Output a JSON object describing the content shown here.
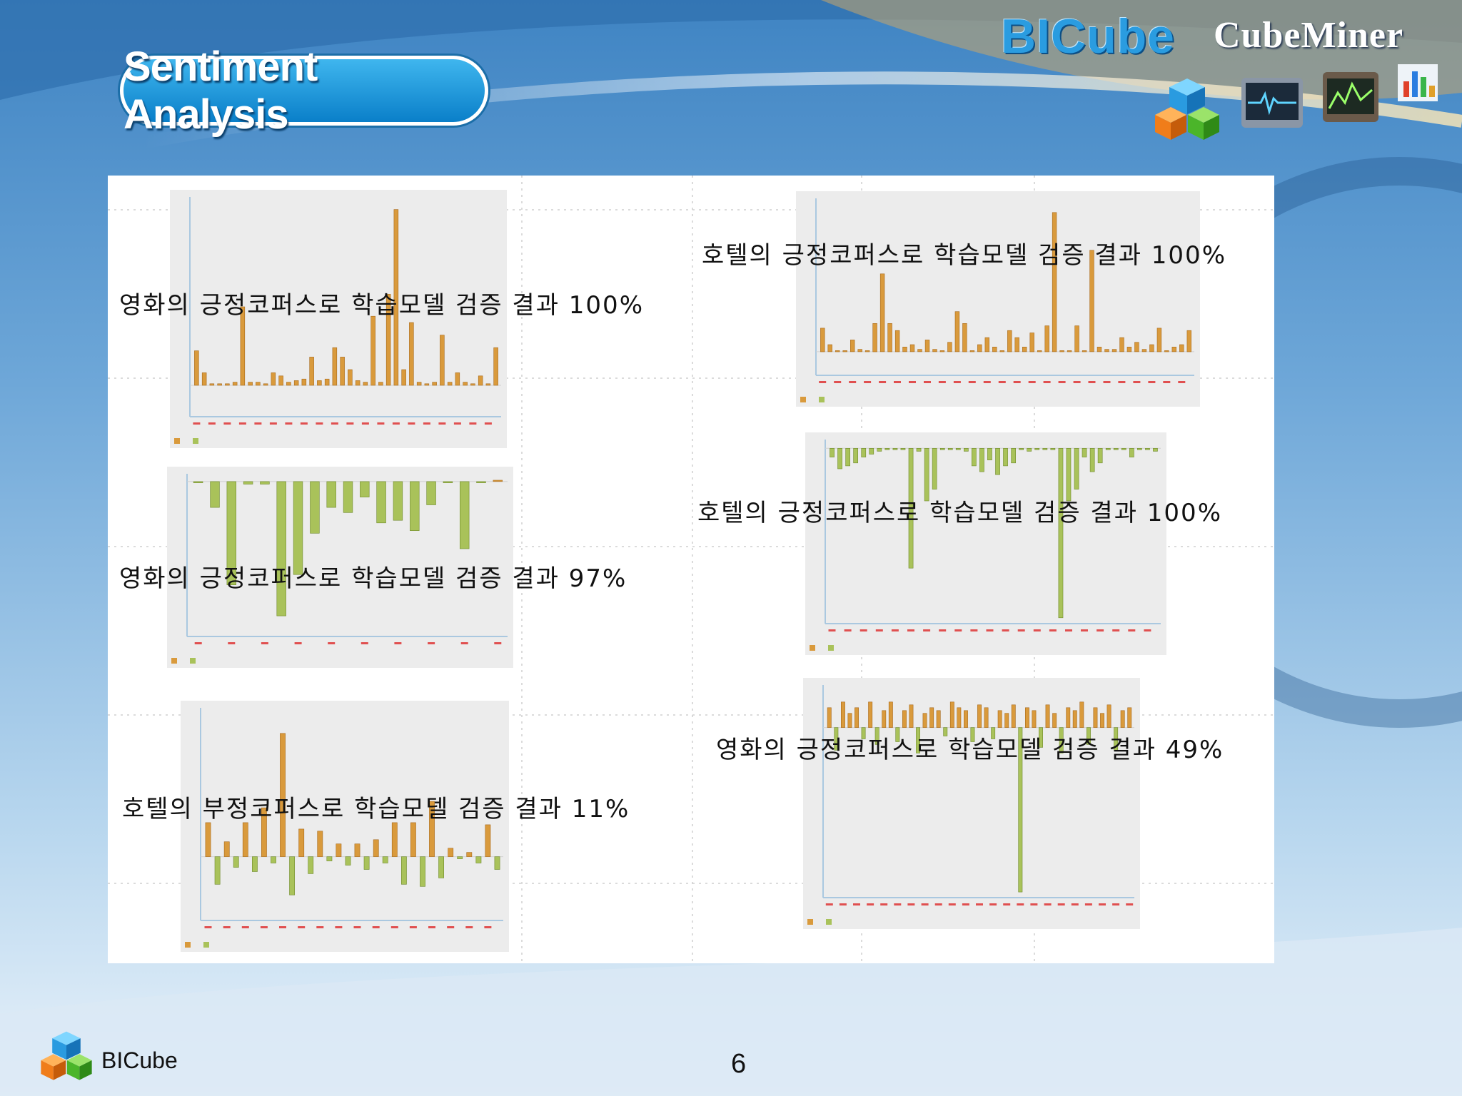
{
  "slide": {
    "title": "Sentiment Analysis",
    "brand": "BICube",
    "product": "CubeMiner",
    "footer_brand": "BICube",
    "page_number": "6"
  },
  "icons": [
    "cube-logo-icon",
    "heartbeat-monitor-icon",
    "line-monitor-icon",
    "bar-chart-icon",
    "cube-logo-small-icon"
  ],
  "colors": {
    "positive_bar": "#d99a3c",
    "negative_bar": "#a9c25a",
    "title_pill": "#1a93dc",
    "axis": "#aac8e0"
  },
  "chart_data": [
    {
      "id": "c1",
      "type": "bar",
      "caption": "영화의 긍정코퍼스로 학습모델 검증 결과 100%",
      "ylim": [
        -1,
        6
      ],
      "values": [
        1.1,
        0.4,
        0.05,
        0.05,
        0.05,
        0.1,
        2.5,
        0.1,
        0.1,
        0.05,
        0.4,
        0.3,
        0.1,
        0.15,
        0.2,
        0.9,
        0.15,
        0.2,
        1.2,
        0.9,
        0.5,
        0.15,
        0.1,
        2.2,
        0.1,
        2.9,
        5.6,
        0.5,
        2.0,
        0.1,
        0.05,
        0.1,
        1.6,
        0.1,
        0.4,
        0.1,
        0.05,
        0.3,
        0.05,
        1.2
      ]
    },
    {
      "id": "c2",
      "type": "bar",
      "caption": "영화의 긍정코퍼스로 학습모델 검증 결과 97%",
      "ylim": [
        -6,
        0.3
      ],
      "values": [
        -0.05,
        -1.0,
        -4.0,
        -0.1,
        -0.1,
        -5.2,
        -3.6,
        -2.0,
        -1.0,
        -1.2,
        -0.6,
        -1.6,
        -1.5,
        -1.9,
        -0.9,
        -0.05,
        -2.6,
        -0.05,
        0.05
      ]
    },
    {
      "id": "c3",
      "type": "bar",
      "caption": "호텔의 부정코퍼스로 학습모델 검증 결과 11%",
      "ylim": [
        -3,
        7
      ],
      "values": [
        1.6,
        -1.3,
        0.7,
        -0.5,
        1.6,
        -0.7,
        2.3,
        -0.3,
        5.8,
        -1.8,
        1.3,
        -0.8,
        1.2,
        -0.2,
        0.6,
        -0.4,
        0.6,
        -0.6,
        0.8,
        -0.3,
        1.6,
        -1.3,
        1.6,
        -1.4,
        2.6,
        -1.0,
        0.4,
        -0.1,
        0.2,
        -0.3,
        1.5,
        -0.6
      ]
    },
    {
      "id": "c4",
      "type": "bar",
      "caption": "호텔의 긍정코퍼스로 학습모델 검증 결과 100%",
      "ylim": [
        -1,
        6.5
      ],
      "values": [
        1.0,
        0.3,
        0.05,
        0.05,
        0.5,
        0.1,
        0.05,
        1.2,
        3.3,
        1.2,
        0.9,
        0.2,
        0.3,
        0.1,
        0.5,
        0.1,
        0.05,
        0.4,
        1.7,
        1.2,
        0.05,
        0.3,
        0.6,
        0.2,
        0.05,
        0.9,
        0.6,
        0.2,
        0.8,
        0.05,
        1.1,
        5.9,
        0.05,
        0.05,
        1.1,
        0.05,
        4.3,
        0.2,
        0.1,
        0.1,
        0.6,
        0.2,
        0.4,
        0.1,
        0.3,
        1.0,
        0.05,
        0.2,
        0.3,
        0.9
      ]
    },
    {
      "id": "c5",
      "type": "bar",
      "caption": "호텔의 긍정코퍼스로 학습모델 검증 결과 100%",
      "ylim": [
        -6,
        0.3
      ],
      "values": [
        -0.3,
        -0.7,
        -0.6,
        -0.5,
        -0.3,
        -0.2,
        -0.1,
        -0.05,
        -0.05,
        -0.05,
        -4.1,
        -0.1,
        -1.8,
        -1.4,
        -0.05,
        -0.05,
        -0.05,
        -0.1,
        -0.6,
        -0.8,
        -0.4,
        -0.9,
        -0.6,
        -0.5,
        -0.05,
        -0.1,
        -0.05,
        -0.05,
        -0.05,
        -5.8,
        -1.8,
        -1.4,
        -0.3,
        -0.8,
        -0.5,
        -0.05,
        -0.05,
        -0.05,
        -0.3,
        -0.05,
        -0.05,
        -0.1
      ]
    },
    {
      "id": "c6",
      "type": "bar",
      "caption": "영화의 긍정코퍼스로 학습모델 검증 결과 49%",
      "ylim": [
        -6,
        1.5
      ],
      "values": [
        0.7,
        -0.8,
        0.9,
        0.5,
        0.7,
        -0.4,
        0.9,
        -0.6,
        0.6,
        0.9,
        -0.5,
        0.6,
        0.8,
        -0.9,
        0.5,
        0.7,
        0.6,
        -0.3,
        0.9,
        0.7,
        0.6,
        -0.5,
        0.8,
        0.7,
        -0.4,
        0.6,
        0.5,
        0.8,
        -5.8,
        0.7,
        0.6,
        -0.7,
        0.8,
        0.5,
        -0.9,
        0.7,
        0.6,
        0.9,
        -0.6,
        0.7,
        0.5,
        0.8,
        -0.8,
        0.6,
        0.7
      ]
    }
  ]
}
